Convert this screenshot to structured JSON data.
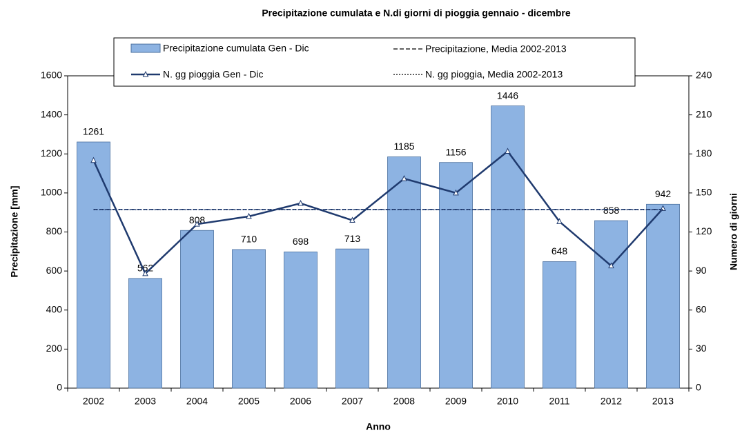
{
  "chart_data": {
    "type": "bar",
    "title": "Precipitazione cumulata e N.di giorni di pioggia  gennaio - dicembre",
    "x_label": "Anno",
    "y_label": "Precipitazione [mm]",
    "y2_label": "Numero di giorni",
    "categories": [
      "2002",
      "2003",
      "2004",
      "2005",
      "2006",
      "2007",
      "2008",
      "2009",
      "2010",
      "2011",
      "2012",
      "2013"
    ],
    "series": [
      {
        "name": "Precipitazione cumulata  Gen - Dic",
        "type": "bar",
        "color": "#8db3e2",
        "values": [
          1261,
          562,
          808,
          710,
          698,
          713,
          1185,
          1156,
          1446,
          648,
          858,
          942
        ]
      },
      {
        "name": "N. gg pioggia Gen - Dic",
        "type": "line",
        "axis": "y2",
        "color": "#1f3a6e",
        "values": [
          175,
          88,
          126,
          132,
          142,
          129,
          161,
          150,
          182,
          128,
          94,
          138
        ]
      }
    ],
    "means": [
      {
        "name": "Precipitazione,  Media 2002-2013",
        "value": 915.6,
        "color": "#1f3a6e",
        "dash": "6,3"
      },
      {
        "name": "N. gg  pioggia, Media 2002-2013",
        "value": 137.1,
        "axis": "y2",
        "color": "#1f3a6e",
        "dash": "2,2"
      }
    ],
    "ylim": [
      0,
      1600
    ],
    "yticks": [
      0,
      200,
      400,
      600,
      800,
      1000,
      1200,
      1400,
      1600
    ],
    "y2lim": [
      0,
      240
    ],
    "y2ticks": [
      0,
      30,
      60,
      90,
      120,
      150,
      180,
      210,
      240
    ]
  }
}
